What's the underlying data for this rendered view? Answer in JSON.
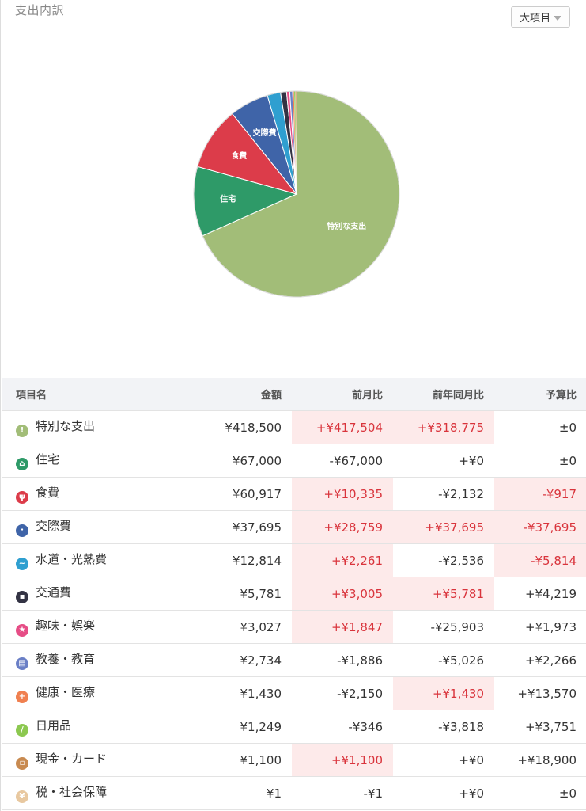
{
  "header": {
    "title": "支出内訳",
    "level_select_label": "大項目"
  },
  "chart_data": {
    "type": "pie",
    "slices": [
      {
        "label": "特別な支出",
        "value": 418500,
        "color": "#a2bd78",
        "show_label": true
      },
      {
        "label": "住宅",
        "value": 67000,
        "color": "#2e9a68",
        "show_label": true
      },
      {
        "label": "食費",
        "value": 60917,
        "color": "#dc3c4a",
        "show_label": true
      },
      {
        "label": "交際費",
        "value": 37695,
        "color": "#3f64a8",
        "show_label": true
      },
      {
        "label": "水道・光熱費",
        "value": 12814,
        "color": "#2f9fd0",
        "show_label": false
      },
      {
        "label": "交通費",
        "value": 5781,
        "color": "#333344",
        "show_label": false
      },
      {
        "label": "趣味・娯楽",
        "value": 3027,
        "color": "#e64d86",
        "show_label": false
      },
      {
        "label": "教養・教育",
        "value": 2734,
        "color": "#6a7fc6",
        "show_label": false
      },
      {
        "label": "健康・医療",
        "value": 1430,
        "color": "#f08050",
        "show_label": false
      },
      {
        "label": "日用品",
        "value": 1249,
        "color": "#8cc850",
        "show_label": false
      },
      {
        "label": "現金・カード",
        "value": 1100,
        "color": "#c88a50",
        "show_label": false
      },
      {
        "label": "税・社会保障",
        "value": 1,
        "color": "#e8c8a0",
        "show_label": false
      }
    ]
  },
  "table": {
    "headers": {
      "name": "項目名",
      "amount": "金額",
      "mom": "前月比",
      "yoy": "前年同月比",
      "budget": "予算比"
    },
    "rows": [
      {
        "icon": "exclamation-icon",
        "color": "#a2bd78",
        "glyph": "!",
        "name": "特別な支出",
        "amount": "¥418,500",
        "mom": "+¥417,504",
        "mom_hl": true,
        "yoy": "+¥318,775",
        "yoy_hl": true,
        "budget": "±0",
        "budget_hl": false
      },
      {
        "icon": "house-icon",
        "color": "#2e9a68",
        "glyph": "⌂",
        "name": "住宅",
        "amount": "¥67,000",
        "mom": "-¥67,000",
        "mom_hl": false,
        "yoy": "+¥0",
        "yoy_hl": false,
        "budget": "±0",
        "budget_hl": false
      },
      {
        "icon": "fork-knife-icon",
        "color": "#dc3c4a",
        "glyph": "ψ",
        "name": "食費",
        "amount": "¥60,917",
        "mom": "+¥10,335",
        "mom_hl": true,
        "yoy": "-¥2,132",
        "yoy_hl": false,
        "budget": "-¥917",
        "budget_hl": true
      },
      {
        "icon": "people-icon",
        "color": "#3f64a8",
        "glyph": "ꞏ",
        "name": "交際費",
        "amount": "¥37,695",
        "mom": "+¥28,759",
        "mom_hl": true,
        "yoy": "+¥37,695",
        "yoy_hl": true,
        "budget": "-¥37,695",
        "budget_hl": true
      },
      {
        "icon": "faucet-icon",
        "color": "#2f9fd0",
        "glyph": "~",
        "name": "水道・光熱費",
        "amount": "¥12,814",
        "mom": "+¥2,261",
        "mom_hl": true,
        "yoy": "-¥2,536",
        "yoy_hl": false,
        "budget": "-¥5,814",
        "budget_hl": true
      },
      {
        "icon": "train-icon",
        "color": "#333344",
        "glyph": "▪",
        "name": "交通費",
        "amount": "¥5,781",
        "mom": "+¥3,005",
        "mom_hl": true,
        "yoy": "+¥5,781",
        "yoy_hl": true,
        "budget": "+¥4,219",
        "budget_hl": false
      },
      {
        "icon": "star-icon",
        "color": "#e64d86",
        "glyph": "★",
        "name": "趣味・娯楽",
        "amount": "¥3,027",
        "mom": "+¥1,847",
        "mom_hl": true,
        "yoy": "-¥25,903",
        "yoy_hl": false,
        "budget": "+¥1,973",
        "budget_hl": false
      },
      {
        "icon": "book-icon",
        "color": "#6a7fc6",
        "glyph": "▤",
        "name": "教養・教育",
        "amount": "¥2,734",
        "mom": "-¥1,886",
        "mom_hl": false,
        "yoy": "-¥5,026",
        "yoy_hl": false,
        "budget": "+¥2,266",
        "budget_hl": false
      },
      {
        "icon": "medical-cross-icon",
        "color": "#f08050",
        "glyph": "+",
        "name": "健康・医療",
        "amount": "¥1,430",
        "mom": "-¥2,150",
        "mom_hl": false,
        "yoy": "+¥1,430",
        "yoy_hl": true,
        "budget": "+¥13,570",
        "budget_hl": false
      },
      {
        "icon": "daily-goods-icon",
        "color": "#8cc850",
        "glyph": "/",
        "name": "日用品",
        "amount": "¥1,249",
        "mom": "-¥346",
        "mom_hl": false,
        "yoy": "-¥3,818",
        "yoy_hl": false,
        "budget": "+¥3,751",
        "budget_hl": false
      },
      {
        "icon": "wallet-icon",
        "color": "#c88a50",
        "glyph": "▫",
        "name": "現金・カード",
        "amount": "¥1,100",
        "mom": "+¥1,100",
        "mom_hl": true,
        "yoy": "+¥0",
        "yoy_hl": false,
        "budget": "+¥18,900",
        "budget_hl": false
      },
      {
        "icon": "tax-icon",
        "color": "#e8c8a0",
        "glyph": "¥",
        "name": "税・社会保障",
        "amount": "¥1",
        "mom": "-¥1",
        "mom_hl": false,
        "yoy": "+¥0",
        "yoy_hl": false,
        "budget": "±0",
        "budget_hl": false
      }
    ]
  }
}
